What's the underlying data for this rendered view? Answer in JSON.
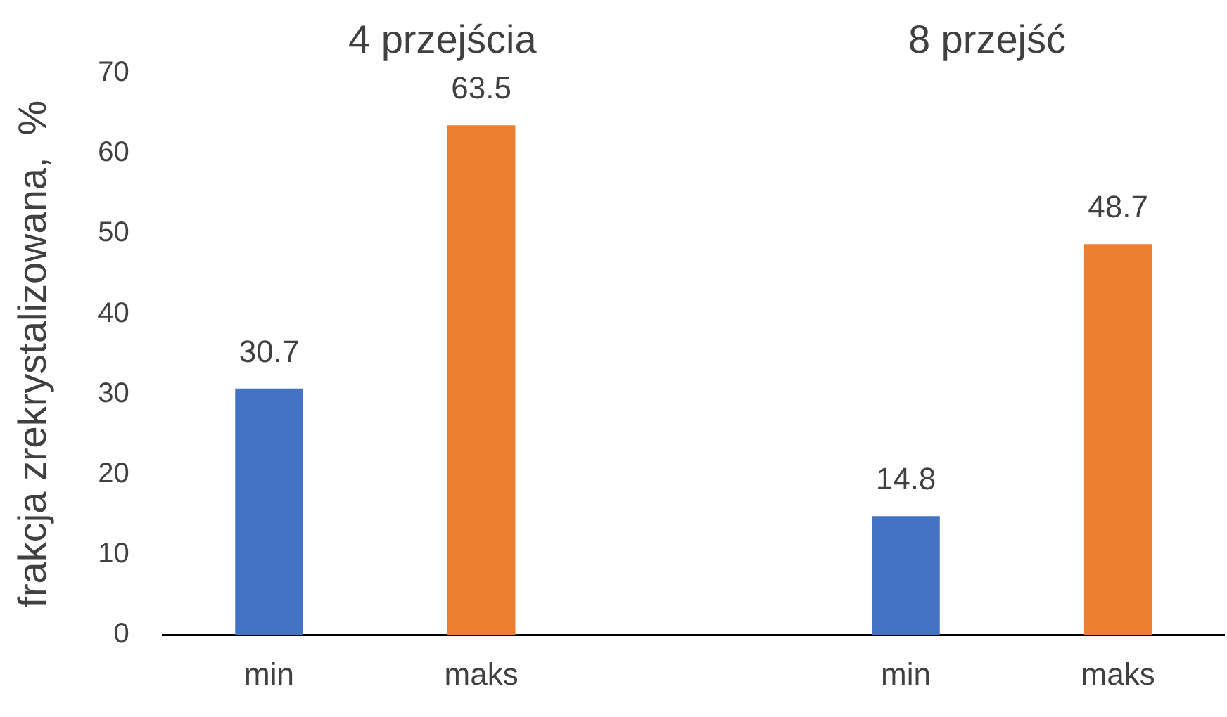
{
  "chart_data": {
    "type": "bar",
    "ylabel": "frakcja zrekrystalizowana,  %",
    "categories": [
      "min",
      "maks",
      null,
      "min",
      "maks"
    ],
    "values": [
      30.7,
      63.5,
      null,
      14.8,
      48.7
    ],
    "colors": [
      "#4472c4",
      "#ed7d31",
      "#4472c4",
      "#4472c4",
      "#ed7d31"
    ],
    "ylim": [
      0,
      70
    ],
    "yticks": [
      0,
      10,
      20,
      30,
      40,
      50,
      60,
      70
    ],
    "annotations": [
      "4 przejścia",
      "8 przejść"
    ],
    "data_labels": true,
    "grid": false,
    "legend": false
  }
}
